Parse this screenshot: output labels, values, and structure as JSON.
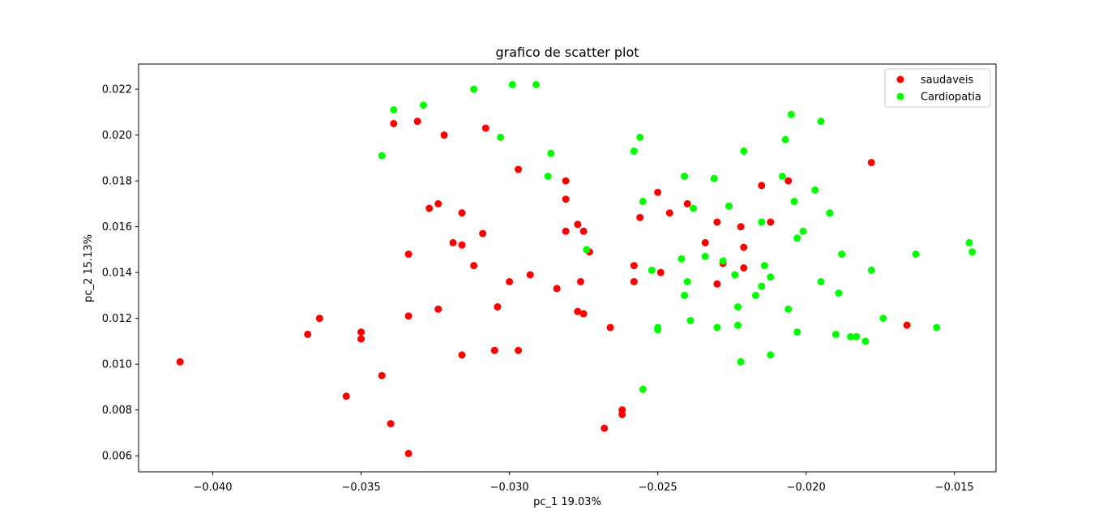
{
  "chart_data": {
    "type": "scatter",
    "title": "grafico de scatter plot",
    "xlabel": "pc_1  19.03%",
    "ylabel": "pc_2  15.13%",
    "xlim": [
      -0.0425,
      -0.0136
    ],
    "ylim": [
      0.0053,
      0.0231
    ],
    "xticks": [
      -0.04,
      -0.035,
      -0.03,
      -0.025,
      -0.02,
      -0.015
    ],
    "xtick_labels": [
      "−0.040",
      "−0.035",
      "−0.030",
      "−0.025",
      "−0.020",
      "−0.015"
    ],
    "yticks": [
      0.006,
      0.008,
      0.01,
      0.012,
      0.014,
      0.016,
      0.018,
      0.02,
      0.022
    ],
    "ytick_labels": [
      "0.006",
      "0.008",
      "0.010",
      "0.012",
      "0.014",
      "0.016",
      "0.018",
      "0.020",
      "0.022"
    ],
    "grid": false,
    "legend_position": "top-right",
    "series": [
      {
        "name": "saudaveis",
        "color": "#ff0000",
        "points": [
          [
            -0.0411,
            0.0101
          ],
          [
            -0.0368,
            0.0113
          ],
          [
            -0.0364,
            0.012
          ],
          [
            -0.0355,
            0.0086
          ],
          [
            -0.035,
            0.0111
          ],
          [
            -0.035,
            0.0114
          ],
          [
            -0.0343,
            0.0095
          ],
          [
            -0.034,
            0.0074
          ],
          [
            -0.0339,
            0.0205
          ],
          [
            -0.0334,
            0.0061
          ],
          [
            -0.0334,
            0.0148
          ],
          [
            -0.0334,
            0.0121
          ],
          [
            -0.0331,
            0.0206
          ],
          [
            -0.0327,
            0.0168
          ],
          [
            -0.0324,
            0.017
          ],
          [
            -0.0324,
            0.0124
          ],
          [
            -0.0322,
            0.02
          ],
          [
            -0.0319,
            0.0153
          ],
          [
            -0.0316,
            0.0166
          ],
          [
            -0.0316,
            0.0152
          ],
          [
            -0.0316,
            0.0104
          ],
          [
            -0.0312,
            0.0143
          ],
          [
            -0.0309,
            0.0157
          ],
          [
            -0.0308,
            0.0203
          ],
          [
            -0.0305,
            0.0106
          ],
          [
            -0.0304,
            0.0125
          ],
          [
            -0.03,
            0.0136
          ],
          [
            -0.0297,
            0.0185
          ],
          [
            -0.0297,
            0.0106
          ],
          [
            -0.0293,
            0.0139
          ],
          [
            -0.0284,
            0.0133
          ],
          [
            -0.0281,
            0.018
          ],
          [
            -0.0281,
            0.0172
          ],
          [
            -0.0281,
            0.0158
          ],
          [
            -0.0277,
            0.0161
          ],
          [
            -0.0277,
            0.0123
          ],
          [
            -0.0275,
            0.0158
          ],
          [
            -0.0276,
            0.0136
          ],
          [
            -0.0275,
            0.0122
          ],
          [
            -0.0273,
            0.0149
          ],
          [
            -0.0268,
            0.0072
          ],
          [
            -0.0266,
            0.0116
          ],
          [
            -0.0262,
            0.008
          ],
          [
            -0.0262,
            0.0078
          ],
          [
            -0.0258,
            0.0143
          ],
          [
            -0.0258,
            0.0136
          ],
          [
            -0.0256,
            0.0164
          ],
          [
            -0.025,
            0.0175
          ],
          [
            -0.0249,
            0.014
          ],
          [
            -0.0246,
            0.0166
          ],
          [
            -0.024,
            0.017
          ],
          [
            -0.0234,
            0.0153
          ],
          [
            -0.023,
            0.0162
          ],
          [
            -0.023,
            0.0135
          ],
          [
            -0.0228,
            0.0144
          ],
          [
            -0.0222,
            0.016
          ],
          [
            -0.0221,
            0.0151
          ],
          [
            -0.0221,
            0.0142
          ],
          [
            -0.0215,
            0.0178
          ],
          [
            -0.0212,
            0.0162
          ],
          [
            -0.0206,
            0.018
          ],
          [
            -0.0178,
            0.0188
          ],
          [
            -0.0166,
            0.0117
          ]
        ]
      },
      {
        "name": "Cardiopatia",
        "color": "#00ff00",
        "points": [
          [
            -0.0343,
            0.0191
          ],
          [
            -0.0339,
            0.0211
          ],
          [
            -0.0329,
            0.0213
          ],
          [
            -0.0312,
            0.022
          ],
          [
            -0.0303,
            0.0199
          ],
          [
            -0.0299,
            0.0222
          ],
          [
            -0.0291,
            0.0222
          ],
          [
            -0.0286,
            0.0192
          ],
          [
            -0.0287,
            0.0182
          ],
          [
            -0.0274,
            0.015
          ],
          [
            -0.0258,
            0.0193
          ],
          [
            -0.0256,
            0.0199
          ],
          [
            -0.0255,
            0.0171
          ],
          [
            -0.0252,
            0.0141
          ],
          [
            -0.025,
            0.0116
          ],
          [
            -0.025,
            0.0115
          ],
          [
            -0.0255,
            0.0089
          ],
          [
            -0.0242,
            0.0146
          ],
          [
            -0.0241,
            0.0182
          ],
          [
            -0.0241,
            0.013
          ],
          [
            -0.024,
            0.0136
          ],
          [
            -0.0239,
            0.0119
          ],
          [
            -0.0238,
            0.0168
          ],
          [
            -0.0234,
            0.0147
          ],
          [
            -0.0231,
            0.0181
          ],
          [
            -0.023,
            0.0116
          ],
          [
            -0.0228,
            0.0145
          ],
          [
            -0.0226,
            0.0169
          ],
          [
            -0.0224,
            0.0139
          ],
          [
            -0.0223,
            0.0125
          ],
          [
            -0.0223,
            0.0117
          ],
          [
            -0.0222,
            0.0101
          ],
          [
            -0.0221,
            0.0193
          ],
          [
            -0.0217,
            0.013
          ],
          [
            -0.0215,
            0.0162
          ],
          [
            -0.0215,
            0.0134
          ],
          [
            -0.0214,
            0.0143
          ],
          [
            -0.0212,
            0.0138
          ],
          [
            -0.0212,
            0.0104
          ],
          [
            -0.0208,
            0.0182
          ],
          [
            -0.0207,
            0.0198
          ],
          [
            -0.0206,
            0.0124
          ],
          [
            -0.0205,
            0.0209
          ],
          [
            -0.0204,
            0.0171
          ],
          [
            -0.0203,
            0.0155
          ],
          [
            -0.0203,
            0.0114
          ],
          [
            -0.0201,
            0.0158
          ],
          [
            -0.0197,
            0.0176
          ],
          [
            -0.0195,
            0.0206
          ],
          [
            -0.0195,
            0.0136
          ],
          [
            -0.0192,
            0.0166
          ],
          [
            -0.019,
            0.0113
          ],
          [
            -0.0189,
            0.0131
          ],
          [
            -0.0188,
            0.0148
          ],
          [
            -0.0185,
            0.0112
          ],
          [
            -0.0183,
            0.0112
          ],
          [
            -0.018,
            0.011
          ],
          [
            -0.0178,
            0.0141
          ],
          [
            -0.0174,
            0.012
          ],
          [
            -0.0163,
            0.0148
          ],
          [
            -0.0156,
            0.0116
          ],
          [
            -0.0145,
            0.0153
          ],
          [
            -0.0144,
            0.0149
          ]
        ]
      }
    ]
  }
}
